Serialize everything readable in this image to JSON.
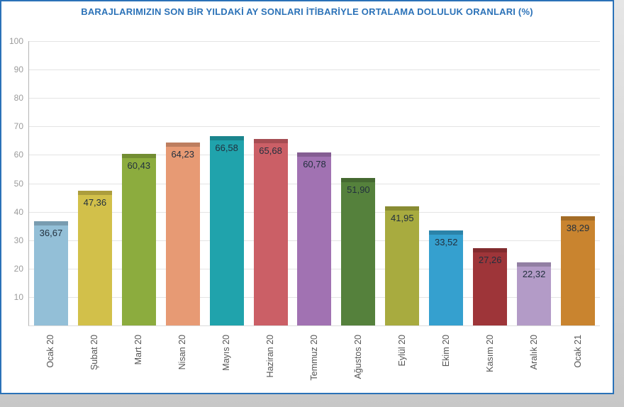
{
  "title": "BARAJLARIMIZIN SON BİR YILDAKİ AY SONLARI İTİBARİYLE ORTALAMA DOLULUK ORANLARI (%)",
  "colors": {
    "accent": "#2b72b8",
    "title_text": "#2b72b8",
    "value_label_text": "#22303e",
    "axis_label_text": "#9b9b9b"
  },
  "chart_data": {
    "type": "bar",
    "title": "BARAJLARIMIZIN SON BİR YILDAKİ AY SONLARI İTİBARİYLE ORTALAMA DOLULUK ORANLARI (%)",
    "categories": [
      "Ocak 20",
      "Şubat 20",
      "Mart 20",
      "Nisan 20",
      "Mayıs 20",
      "Haziran 20",
      "Temmuz 20",
      "Ağustos 20",
      "Eylül 20",
      "Ekim 20",
      "Kasım 20",
      "Aralık 20",
      "Ocak 21"
    ],
    "values": [
      36.67,
      47.36,
      60.43,
      64.23,
      66.58,
      65.68,
      60.78,
      51.9,
      41.95,
      33.52,
      27.26,
      22.32,
      38.29
    ],
    "value_labels": [
      "36,67",
      "47,36",
      "60,43",
      "64,23",
      "66,58",
      "65,68",
      "60,78",
      "51,90",
      "41,95",
      "33,52",
      "27,26",
      "22,32",
      "38,29"
    ],
    "bar_colors": [
      "#93bfd7",
      "#d2c04a",
      "#8cac3e",
      "#e79a74",
      "#20a3ac",
      "#cb5f66",
      "#a172b2",
      "#55813c",
      "#a8ab3f",
      "#35a0cf",
      "#9e3539",
      "#b39bc7",
      "#c9842f"
    ],
    "xlabel": "",
    "ylabel": "",
    "ylim": [
      0,
      100
    ],
    "yticks": [
      100,
      90,
      80,
      70,
      60,
      50,
      40,
      30,
      20,
      10
    ],
    "grid": true,
    "legend_position": "none"
  }
}
